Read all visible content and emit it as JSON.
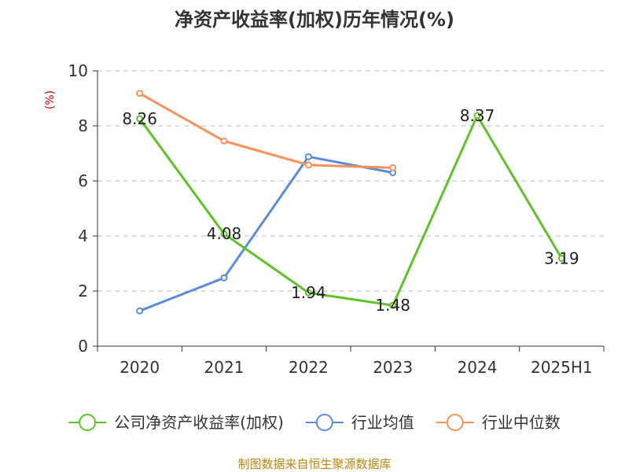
{
  "chart_data": {
    "type": "line",
    "title": "净资产收益率(加权)历年情况(%)",
    "ylabel": "(%)",
    "xlabel": "",
    "categories": [
      "2020",
      "2021",
      "2022",
      "2023",
      "2024",
      "2025H1"
    ],
    "ylim": [
      0,
      10
    ],
    "yticks": [
      0,
      2,
      4,
      6,
      8,
      10
    ],
    "grid": "horizontal dashed",
    "legend_position": "bottom",
    "series": [
      {
        "name": "公司净资产收益率(加权)",
        "color": "#5ec227",
        "values": [
          8.26,
          4.08,
          1.94,
          1.48,
          8.37,
          3.19
        ],
        "labels": [
          "8.26",
          "4.08",
          "1.94",
          "1.48",
          "8.37",
          "3.19"
        ]
      },
      {
        "name": "行业均值",
        "color": "#5b8bd9",
        "values": [
          1.28,
          2.48,
          6.88,
          6.3,
          null,
          null
        ]
      },
      {
        "name": "行业中位数",
        "color": "#f7915c",
        "values": [
          9.18,
          7.45,
          6.58,
          6.48,
          null,
          null
        ]
      }
    ]
  },
  "footer": "制图数据来自恒生聚源数据库"
}
